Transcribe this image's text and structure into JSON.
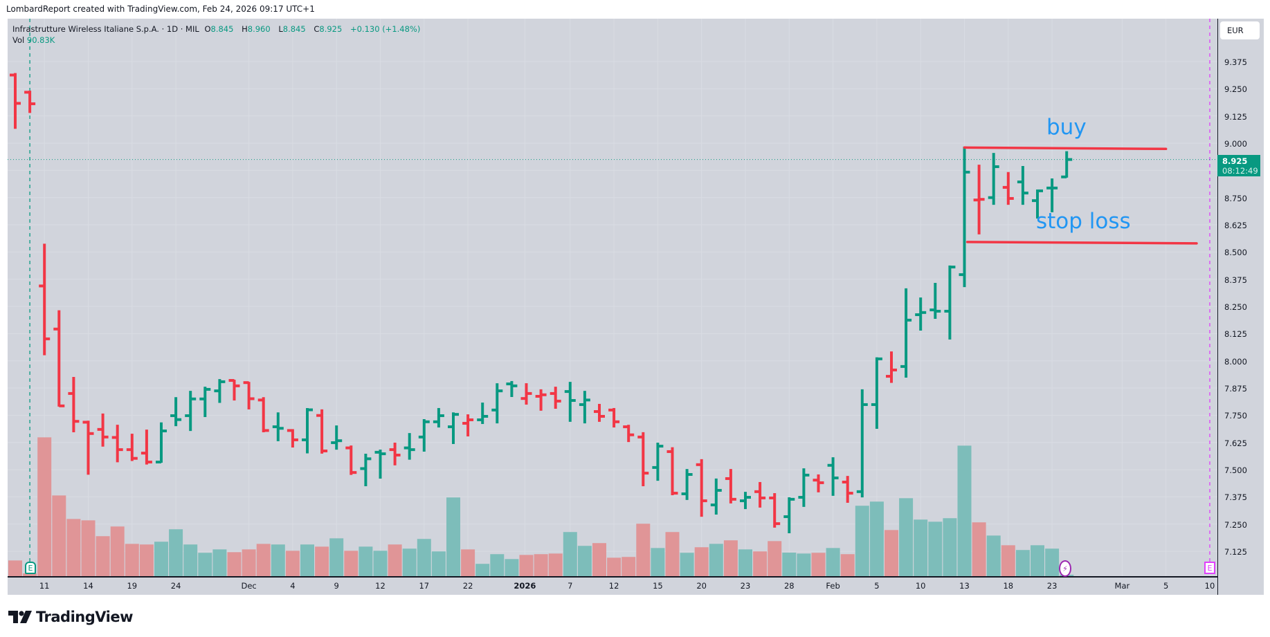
{
  "credit": "LombardReport created with TradingView.com, Feb 24, 2026 09:17 UTC+1",
  "legend": {
    "symbol": "Infrastrutture Wireless Italiane S.p.A. · 1D · MIL",
    "o_label": "O",
    "o": "8.845",
    "h_label": "H",
    "h": "8.960",
    "l_label": "L",
    "l": "8.845",
    "c_label": "C",
    "c": "8.925",
    "change": "+0.130 (+1.48%)",
    "vol_label": "Vol",
    "vol": "90.83K"
  },
  "currency": "EUR",
  "last_price": {
    "price": "8.925",
    "countdown": "08:12:49"
  },
  "earnings_icon": "E",
  "annotations": {
    "buy": "buy",
    "stop_loss": "stop loss"
  },
  "brand": "TradingView",
  "colors": {
    "up": "#089981",
    "down": "#f23645",
    "vol_up": "#7dbdba",
    "vol_down": "#e09597",
    "annotation_text": "#2196f3",
    "annotation_line": "#f23645",
    "pane": "#d1d4dc"
  },
  "chart_data": {
    "type": "ohlc",
    "title": "Infrastrutture Wireless Italiane S.p.A. · 1D · MIL",
    "ylabel": "EUR",
    "ylim": [
      7.05,
      9.45
    ],
    "y_ticks": [
      "9.375",
      "9.250",
      "9.125",
      "9.000",
      "8.875",
      "8.750",
      "8.625",
      "8.500",
      "8.375",
      "8.250",
      "8.125",
      "8.000",
      "7.875",
      "7.750",
      "7.625",
      "7.500",
      "7.375",
      "7.250",
      "7.125"
    ],
    "x_ticks": [
      {
        "label": "11",
        "i": 2
      },
      {
        "label": "14",
        "i": 5
      },
      {
        "label": "19",
        "i": 8
      },
      {
        "label": "24",
        "i": 11
      },
      {
        "label": "Dec",
        "i": 16
      },
      {
        "label": "4",
        "i": 19
      },
      {
        "label": "9",
        "i": 22
      },
      {
        "label": "12",
        "i": 25
      },
      {
        "label": "17",
        "i": 28
      },
      {
        "label": "22",
        "i": 31
      },
      {
        "label": "2026",
        "i": 34.9,
        "bold": true
      },
      {
        "label": "7",
        "i": 38
      },
      {
        "label": "12",
        "i": 41
      },
      {
        "label": "15",
        "i": 44
      },
      {
        "label": "20",
        "i": 47
      },
      {
        "label": "23",
        "i": 50
      },
      {
        "label": "28",
        "i": 53
      },
      {
        "label": "Feb",
        "i": 56
      },
      {
        "label": "5",
        "i": 59
      },
      {
        "label": "10",
        "i": 62
      },
      {
        "label": "13",
        "i": 65
      },
      {
        "label": "18",
        "i": 68
      },
      {
        "label": "23",
        "i": 71
      },
      {
        "label": "Mar",
        "i": 75.8
      },
      {
        "label": "5",
        "i": 78.8
      },
      {
        "label": "10",
        "i": 81.8
      }
    ],
    "ohlc": [
      [
        9.313,
        9.319,
        9.069,
        9.183
      ],
      [
        9.234,
        9.238,
        9.142,
        9.181
      ],
      [
        8.344,
        8.535,
        8.029,
        8.101
      ],
      [
        8.146,
        8.229,
        7.793,
        7.793
      ],
      [
        7.85,
        7.923,
        7.675,
        7.722
      ],
      [
        7.718,
        7.722,
        7.48,
        7.666
      ],
      [
        7.685,
        7.755,
        7.609,
        7.65
      ],
      [
        7.648,
        7.703,
        7.537,
        7.592
      ],
      [
        7.592,
        7.662,
        7.543,
        7.552
      ],
      [
        7.576,
        7.681,
        7.527,
        7.535
      ],
      [
        7.535,
        7.714,
        7.535,
        7.678
      ],
      [
        7.748,
        7.83,
        7.703,
        7.73
      ],
      [
        7.748,
        7.859,
        7.681,
        7.825
      ],
      [
        7.825,
        7.878,
        7.745,
        7.869
      ],
      [
        7.862,
        7.913,
        7.81,
        7.904
      ],
      [
        7.91,
        7.91,
        7.821,
        7.885
      ],
      [
        7.9,
        7.9,
        7.78,
        7.826
      ],
      [
        7.82,
        7.83,
        7.675,
        7.68
      ],
      [
        7.697,
        7.76,
        7.634,
        7.69
      ],
      [
        7.68,
        7.683,
        7.605,
        7.637
      ],
      [
        7.637,
        7.78,
        7.578,
        7.775
      ],
      [
        7.749,
        7.774,
        7.577,
        7.586
      ],
      [
        7.624,
        7.7,
        7.595,
        7.633
      ],
      [
        7.6,
        7.608,
        7.479,
        7.487
      ],
      [
        7.505,
        7.57,
        7.427,
        7.55
      ],
      [
        7.58,
        7.589,
        7.462,
        7.573
      ],
      [
        7.592,
        7.621,
        7.523,
        7.567
      ],
      [
        7.6,
        7.665,
        7.549,
        7.592
      ],
      [
        7.65,
        7.729,
        7.586,
        7.72
      ],
      [
        7.72,
        7.78,
        7.697,
        7.748
      ],
      [
        7.697,
        7.76,
        7.621,
        7.754
      ],
      [
        7.713,
        7.751,
        7.656,
        7.729
      ],
      [
        7.729,
        7.805,
        7.713,
        7.745
      ],
      [
        7.774,
        7.894,
        7.716,
        7.862
      ],
      [
        7.894,
        7.904,
        7.837,
        7.885
      ],
      [
        7.827,
        7.894,
        7.802,
        7.85
      ],
      [
        7.837,
        7.866,
        7.774,
        7.844
      ],
      [
        7.85,
        7.878,
        7.783,
        7.815
      ],
      [
        7.859,
        7.9,
        7.723,
        7.818
      ],
      [
        7.799,
        7.859,
        7.716,
        7.82
      ],
      [
        7.767,
        7.799,
        7.723,
        7.745
      ],
      [
        7.774,
        7.78,
        7.697,
        7.72
      ],
      [
        7.697,
        7.703,
        7.63,
        7.66
      ],
      [
        7.65,
        7.669,
        7.427,
        7.484
      ],
      [
        7.51,
        7.621,
        7.452,
        7.608
      ],
      [
        7.583,
        7.6,
        7.386,
        7.392
      ],
      [
        7.389,
        7.5,
        7.364,
        7.478
      ],
      [
        7.523,
        7.545,
        7.287,
        7.357
      ],
      [
        7.338,
        7.456,
        7.297,
        7.405
      ],
      [
        7.459,
        7.5,
        7.348,
        7.364
      ],
      [
        7.357,
        7.395,
        7.322,
        7.373
      ],
      [
        7.399,
        7.44,
        7.329,
        7.37
      ],
      [
        7.37,
        7.389,
        7.237,
        7.252
      ],
      [
        7.284,
        7.37,
        7.211,
        7.364
      ],
      [
        7.373,
        7.503,
        7.332,
        7.475
      ],
      [
        7.452,
        7.475,
        7.399,
        7.44
      ],
      [
        7.52,
        7.554,
        7.383,
        7.462
      ],
      [
        7.443,
        7.468,
        7.351,
        7.392
      ],
      [
        7.399,
        7.866,
        7.376,
        7.799
      ],
      [
        7.799,
        8.013,
        7.691,
        8.009
      ],
      [
        7.929,
        8.04,
        7.902,
        7.958
      ],
      [
        7.974,
        8.33,
        7.926,
        8.187
      ],
      [
        8.212,
        8.288,
        8.142,
        8.222
      ],
      [
        8.234,
        8.355,
        8.196,
        8.228
      ],
      [
        8.228,
        8.435,
        8.101,
        8.431
      ],
      [
        8.396,
        8.981,
        8.342,
        8.867
      ],
      [
        8.739,
        8.898,
        8.584,
        8.742
      ],
      [
        8.75,
        8.952,
        8.72,
        8.892
      ],
      [
        8.797,
        8.864,
        8.72,
        8.746
      ],
      [
        8.822,
        8.892,
        8.72,
        8.771
      ],
      [
        8.736,
        8.784,
        8.657,
        8.781
      ],
      [
        8.794,
        8.835,
        8.686,
        8.794
      ],
      [
        8.845,
        8.96,
        8.845,
        8.925
      ]
    ],
    "volume_k": [
      1020,
      180,
      9030,
      5250,
      3720,
      3630,
      2600,
      3230,
      2100,
      2060,
      2240,
      3050,
      2060,
      1520,
      1740,
      1560,
      1740,
      2100,
      2060,
      1650,
      2060,
      1920,
      2460,
      1650,
      1920,
      1650,
      2060,
      1790,
      2420,
      1610,
      5120,
      1740,
      800,
      1430,
      1110,
      1380,
      1430,
      1470,
      2870,
      1970,
      2150,
      1200,
      1250,
      3410,
      1830,
      2870,
      1520,
      1880,
      2100,
      2330,
      1740,
      1610,
      2280,
      1530,
      1470,
      1520,
      1830,
      1430,
      4580,
      4850,
      3000,
      5070,
      3680,
      3540,
      3770,
      8490,
      3500,
      2640,
      2010,
      1700,
      2010,
      1790,
      90.83
    ],
    "levels": [
      {
        "name": "buy",
        "price": 8.98,
        "from_i": 65,
        "to_i": 78.8
      },
      {
        "name": "stop_loss",
        "price": 8.546,
        "from_i": 65.2,
        "to_i": 80.9
      }
    ],
    "last_close": 8.925,
    "earnings_marks_i": [
      1,
      81.8
    ],
    "dividend_mark_i": 72.1
  }
}
